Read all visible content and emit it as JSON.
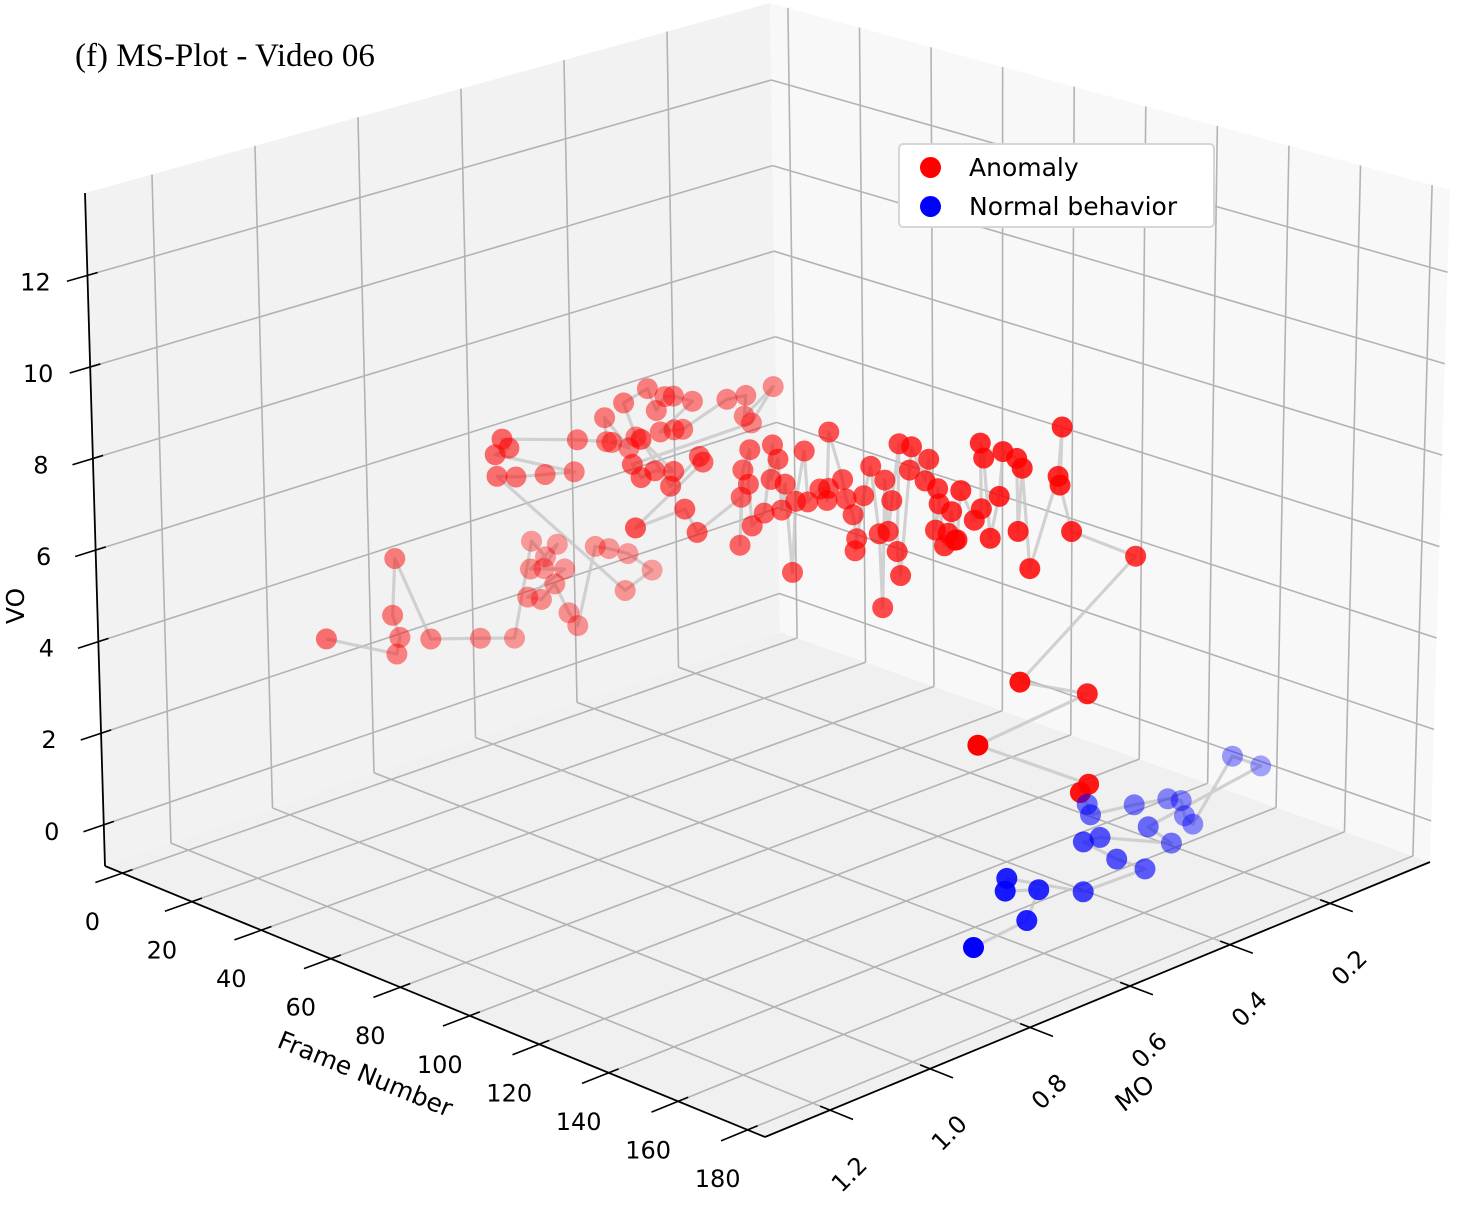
{
  "chart_data": {
    "type": "scatter",
    "projection": "3d",
    "title": "(f) MS-Plot - Video 06",
    "xlabel": "Frame Number",
    "ylabel": "MO",
    "zlabel": "VO",
    "xlim": [
      -5,
      185
    ],
    "ylim": [
      0,
      1.33
    ],
    "zlim": [
      -0.9,
      13.8
    ],
    "xticks": [
      "0",
      "20",
      "40",
      "60",
      "80",
      "100",
      "120",
      "140",
      "160",
      "180"
    ],
    "yticks": [
      "0.2",
      "0.4",
      "0.6",
      "0.8",
      "1.0",
      "1.2"
    ],
    "zticks": [
      "0",
      "2",
      "4",
      "6",
      "8",
      "10",
      "12"
    ],
    "grid": true,
    "legend": {
      "position": "top-right",
      "entries": [
        "Anomaly",
        "Normal behavior"
      ]
    },
    "trajectory_color": "#c4c4c4",
    "point_fields": [
      "frame",
      "MO",
      "VO"
    ],
    "series": [
      {
        "name": "Anomaly",
        "color": "#ff0000",
        "points": [
          [
            0,
            0.92,
            2.7
          ],
          [
            1,
            0.79,
            1.9
          ],
          [
            2,
            0.79,
            2.3
          ],
          [
            3,
            0.81,
            2.9
          ],
          [
            4,
            0.81,
            4.2
          ],
          [
            5,
            0.75,
            2.2
          ],
          [
            6,
            0.66,
            1.9
          ],
          [
            7,
            0.6,
            1.7
          ],
          [
            8,
            0.57,
            3.8
          ],
          [
            9,
            0.55,
            3.4
          ],
          [
            10,
            0.56,
            3.2
          ],
          [
            11,
            0.54,
            3.7
          ],
          [
            12,
            0.6,
            3.4
          ],
          [
            13,
            0.54,
            3.2
          ],
          [
            14,
            0.62,
            2.9
          ],
          [
            15,
            0.6,
            2.8
          ],
          [
            16,
            0.58,
            3.1
          ],
          [
            17,
            0.56,
            2.4
          ],
          [
            18,
            0.55,
            2.1
          ],
          [
            19,
            0.52,
            3.8
          ],
          [
            20,
            0.5,
            3.7
          ],
          [
            21,
            0.47,
            3.5
          ],
          [
            22,
            0.43,
            3.0
          ],
          [
            23,
            0.49,
            2.8
          ],
          [
            25,
            0.75,
            6.4
          ],
          [
            26,
            0.72,
            6.3
          ],
          [
            27,
            0.67,
            6.2
          ],
          [
            28,
            0.62,
            6.1
          ],
          [
            29,
            0.78,
            7.1
          ],
          [
            30,
            0.76,
            7.2
          ],
          [
            31,
            0.78,
            7.5
          ],
          [
            32,
            0.64,
            7.0
          ],
          [
            33,
            0.59,
            6.8
          ],
          [
            34,
            0.6,
            7.4
          ],
          [
            35,
            0.56,
            6.6
          ],
          [
            36,
            0.6,
            6.9
          ],
          [
            37,
            0.56,
            6.9
          ],
          [
            38,
            0.59,
            7.8
          ],
          [
            39,
            0.55,
            8.0
          ],
          [
            40,
            0.54,
            7.5
          ],
          [
            41,
            0.53,
            7.8
          ],
          [
            42,
            0.52,
            7.8
          ],
          [
            43,
            0.49,
            7.6
          ],
          [
            44,
            0.56,
            7.2
          ],
          [
            45,
            0.54,
            7.2
          ],
          [
            46,
            0.53,
            7.2
          ],
          [
            47,
            0.45,
            7.6
          ],
          [
            48,
            0.42,
            7.6
          ],
          [
            49,
            0.43,
            7.2
          ],
          [
            50,
            0.38,
            7.7
          ],
          [
            51,
            0.43,
            7.1
          ],
          [
            52,
            0.67,
            7.1
          ],
          [
            53,
            0.66,
            6.8
          ],
          [
            54,
            0.64,
            6.9
          ],
          [
            55,
            0.61,
            6.8
          ],
          [
            56,
            0.68,
            7.8
          ],
          [
            57,
            0.63,
            6.6
          ],
          [
            58,
            0.58,
            7.1
          ],
          [
            59,
            0.58,
            7.0
          ],
          [
            60,
            0.72,
            6.1
          ],
          [
            61,
            0.63,
            6.2
          ],
          [
            63,
            0.62,
            5.7
          ],
          [
            64,
            0.54,
            6.2
          ],
          [
            65,
            0.55,
            5.2
          ],
          [
            66,
            0.55,
            6.9
          ],
          [
            68,
            0.55,
            7.4
          ],
          [
            69,
            0.56,
            6.7
          ],
          [
            70,
            0.56,
            5.8
          ],
          [
            72,
            0.55,
            6.1
          ],
          [
            73,
            0.54,
            7.6
          ],
          [
            74,
            0.55,
            6.9
          ],
          [
            76,
            0.55,
            7.4
          ],
          [
            77,
            0.55,
            6.3
          ],
          [
            78,
            0.55,
            6.9
          ],
          [
            80,
            0.55,
            5.0
          ],
          [
            81,
            0.55,
            6.6
          ],
          [
            82,
            0.54,
            7.7
          ],
          [
            83,
            0.54,
            6.6
          ],
          [
            85,
            0.53,
            6.9
          ],
          [
            86,
            0.52,
            6.9
          ],
          [
            87,
            0.53,
            6.7
          ],
          [
            89,
            0.54,
            8.3
          ],
          [
            90,
            0.52,
            7.2
          ],
          [
            91,
            0.52,
            6.8
          ],
          [
            93,
            0.52,
            6.5
          ],
          [
            94,
            0.52,
            6.0
          ],
          [
            95,
            0.53,
            5.8
          ],
          [
            96,
            0.52,
            7.0
          ],
          [
            98,
            0.52,
            7.7
          ],
          [
            99,
            0.51,
            6.2
          ],
          [
            100,
            0.51,
            4.6
          ],
          [
            102,
            0.52,
            7.5
          ],
          [
            103,
            0.52,
            6.4
          ],
          [
            104,
            0.52,
            7.1
          ],
          [
            106,
            0.52,
            8.4
          ],
          [
            107,
            0.53,
            6.1
          ],
          [
            108,
            0.53,
            5.6
          ],
          [
            109,
            0.52,
            7.9
          ],
          [
            111,
            0.53,
            8.5
          ],
          [
            112,
            0.51,
            7.7
          ],
          [
            113,
            0.51,
            8.2
          ],
          [
            115,
            0.51,
            6.7
          ],
          [
            116,
            0.51,
            7.3
          ],
          [
            117,
            0.52,
            7.7
          ],
          [
            119,
            0.52,
            6.5
          ],
          [
            120,
            0.52,
            6.8
          ],
          [
            121,
            0.52,
            7.3
          ],
          [
            122,
            0.52,
            6.7
          ],
          [
            124,
            0.53,
            6.8
          ],
          [
            125,
            0.53,
            7.9
          ],
          [
            126,
            0.51,
            7.2
          ],
          [
            128,
            0.51,
            7.5
          ],
          [
            129,
            0.52,
            9.0
          ],
          [
            130,
            0.52,
            8.7
          ],
          [
            132,
            0.52,
            7.0
          ],
          [
            133,
            0.51,
            7.9
          ],
          [
            134,
            0.51,
            8.9
          ],
          [
            135,
            0.49,
            8.7
          ],
          [
            137,
            0.5,
            7.2
          ],
          [
            138,
            0.5,
            8.6
          ],
          [
            139,
            0.49,
            6.4
          ],
          [
            141,
            0.45,
            8.3
          ],
          [
            142,
            0.45,
            9.4
          ],
          [
            143,
            0.46,
            8.2
          ],
          [
            145,
            0.45,
            7.2
          ],
          [
            146,
            0.33,
            6.2
          ],
          [
            148,
            0.57,
            4.5
          ],
          [
            150,
            0.45,
            3.8
          ],
          [
            152,
            0.68,
            3.7
          ],
          [
            155,
            0.48,
            2.1
          ],
          [
            157,
            0.51,
            2.1
          ]
        ]
      },
      {
        "name": "Normal behavior",
        "color": "#0000ff",
        "points": [
          [
            159,
            0.51,
            1.9
          ],
          [
            160,
            0.51,
            1.7
          ],
          [
            161,
            0.43,
            1.6
          ],
          [
            162,
            0.37,
            1.5
          ],
          [
            163,
            0.35,
            1.4
          ],
          [
            164,
            0.35,
            1.1
          ],
          [
            165,
            0.34,
            0.9
          ],
          [
            166,
            0.27,
            2.1
          ],
          [
            167,
            0.22,
            1.7
          ],
          [
            168,
            0.45,
            1.4
          ],
          [
            169,
            0.41,
            0.9
          ],
          [
            170,
            0.56,
            1.7
          ],
          [
            171,
            0.6,
            1.8
          ],
          [
            172,
            0.54,
            1.2
          ],
          [
            173,
            0.49,
            0.8
          ],
          [
            174,
            0.62,
            0.9
          ],
          [
            175,
            0.78,
            1.9
          ],
          [
            176,
            0.79,
            1.7
          ],
          [
            177,
            0.73,
            1.5
          ],
          [
            178,
            0.76,
            1.0
          ],
          [
            180,
            0.88,
            1.0
          ]
        ]
      }
    ]
  }
}
